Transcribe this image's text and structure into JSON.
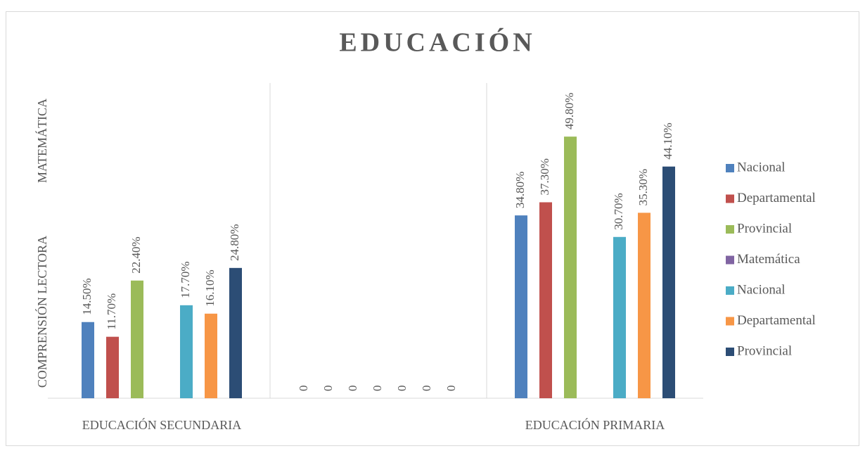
{
  "chart_data": {
    "type": "bar",
    "title": "EDUCACIÓN",
    "y_labels": [
      "COMPRENSIÓN LECTORA",
      "MATEMÁTICA"
    ],
    "categories": [
      "EDUCACIÓN SECUNDARIA",
      null,
      "EDUCACIÓN PRIMARIA"
    ],
    "series": [
      {
        "name": "Nacional",
        "color": "#4f81bd",
        "values": [
          14.5,
          0,
          34.8
        ],
        "value_labels": [
          "14.50%",
          "0",
          "34.80%"
        ]
      },
      {
        "name": "Departamental",
        "color": "#c0504d",
        "values": [
          11.7,
          0,
          37.3
        ],
        "value_labels": [
          "11.70%",
          "0",
          "37.30%"
        ]
      },
      {
        "name": "Provincial",
        "color": "#9bbb59",
        "values": [
          22.4,
          0,
          49.8
        ],
        "value_labels": [
          "22.40%",
          "0",
          "49.80%"
        ]
      },
      {
        "name": "Matemática",
        "color": "#8064a2",
        "values": [
          null,
          0,
          null
        ],
        "value_labels": [
          null,
          "0",
          null
        ]
      },
      {
        "name": "Nacional",
        "color": "#4bacc6",
        "values": [
          17.7,
          0,
          30.7
        ],
        "value_labels": [
          "17.70%",
          "0",
          "30.70%"
        ]
      },
      {
        "name": "Departamental",
        "color": "#f79646",
        "values": [
          16.1,
          0,
          35.3
        ],
        "value_labels": [
          "16.10%",
          "0",
          "35.30%"
        ]
      },
      {
        "name": "Provincial",
        "color": "#2c4d75",
        "values": [
          24.8,
          0,
          44.1
        ],
        "value_labels": [
          "24.80%",
          "0",
          "44.10%"
        ]
      }
    ],
    "ylim": [
      0,
      60
    ],
    "legend": "right"
  }
}
